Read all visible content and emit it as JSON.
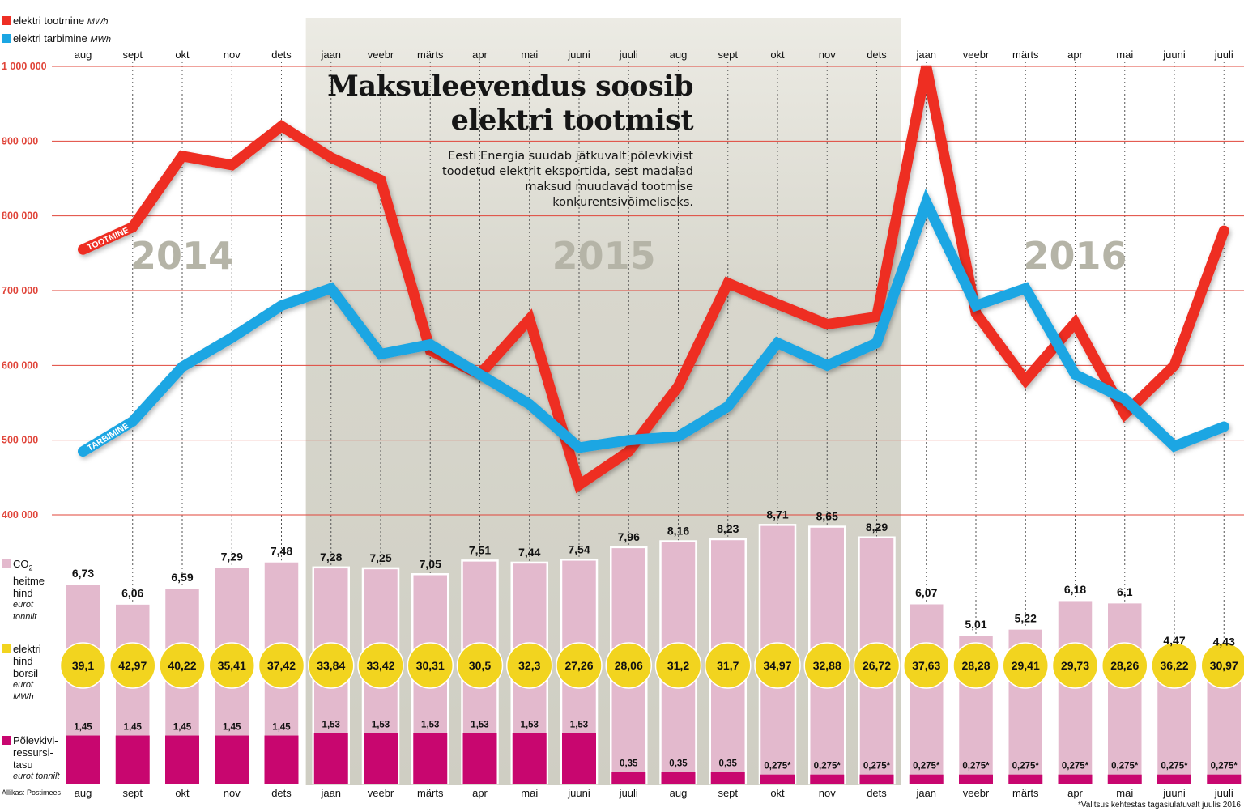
{
  "legend": {
    "production": {
      "label": "elektri tootmine",
      "unit": "MWh",
      "color": "#ee2e24"
    },
    "consumption": {
      "label": "elektri tarbimine",
      "unit": "MWh",
      "color": "#1ba6e3"
    }
  },
  "headline": "Maksuleevendus soosib elektri tootmist",
  "dek": "Eesti Energia suudab jätkuvalt põlevkivist toodetud elektrit eksportida, sest madalad maksud muudavad tootmise konkurentsivõimeliseks.",
  "side_labels": {
    "co2": {
      "line1": "CO",
      "sub": "2",
      "line2": "heitme",
      "line3": "hind",
      "unit1": "eurot",
      "unit2": "tonnilt",
      "color": "#e3b9cd"
    },
    "price": {
      "line1": "elektri",
      "line2": "hind",
      "line3": "börsil",
      "unit1": "eurot",
      "unit2": "MWh",
      "color": "#f2d41f"
    },
    "tax": {
      "line1": "Põlevkivi-",
      "line2": "ressursi-",
      "line3": "tasu",
      "unit1": "eurot tonnilt",
      "color": "#c8066f"
    }
  },
  "source": "Allikas: Postimees",
  "footnote": "*Valitsus kehtestas tagasiulatuvalt juulis 2016",
  "chart_data": {
    "type": "line",
    "categories": [
      "aug",
      "sept",
      "okt",
      "nov",
      "dets",
      "jaan",
      "veebr",
      "märts",
      "apr",
      "mai",
      "juuni",
      "juuli",
      "aug",
      "sept",
      "okt",
      "nov",
      "dets",
      "jaan",
      "veebr",
      "märts",
      "apr",
      "mai",
      "juuni",
      "juuli"
    ],
    "years": [
      {
        "label": "2014",
        "from": 0,
        "to": 4
      },
      {
        "label": "2015",
        "from": 5,
        "to": 16
      },
      {
        "label": "2016",
        "from": 17,
        "to": 23
      }
    ],
    "y_ticks": [
      {
        "value": 1000000,
        "label": "1 000 000"
      },
      {
        "value": 900000,
        "label": "900 000"
      },
      {
        "value": 800000,
        "label": "800 000"
      },
      {
        "value": 700000,
        "label": "700 000"
      },
      {
        "value": 600000,
        "label": "600 000"
      },
      {
        "value": 500000,
        "label": "500 000"
      },
      {
        "value": 400000,
        "label": "400 000"
      }
    ],
    "ylim": [
      400000,
      1000000
    ],
    "series": [
      {
        "name": "elektri tootmine",
        "line_label": "TOOTMINE",
        "color": "#ee2e24",
        "values": [
          755000,
          785000,
          880000,
          868000,
          920000,
          878000,
          848000,
          620000,
          588000,
          662000,
          440000,
          485000,
          572000,
          710000,
          682000,
          655000,
          665000,
          1000000,
          670000,
          580000,
          657000,
          535000,
          600000,
          780000
        ]
      },
      {
        "name": "elektri tarbimine",
        "line_label": "TARBIMINE",
        "color": "#1ba6e3",
        "values": [
          485000,
          525000,
          598000,
          637000,
          680000,
          703000,
          615000,
          628000,
          588000,
          548000,
          490000,
          500000,
          505000,
          545000,
          630000,
          600000,
          630000,
          818000,
          680000,
          703000,
          588000,
          555000,
          492000,
          518000
        ]
      }
    ],
    "co2_price": {
      "values": [
        6.73,
        6.06,
        6.59,
        7.29,
        7.48,
        7.28,
        7.25,
        7.05,
        7.51,
        7.44,
        7.54,
        7.96,
        8.16,
        8.23,
        8.71,
        8.65,
        8.29,
        6.07,
        5.01,
        5.22,
        6.18,
        6.1,
        4.47,
        4.43
      ],
      "labels": [
        "6,73",
        "6,06",
        "6,59",
        "7,29",
        "7,48",
        "7,28",
        "7,25",
        "7,05",
        "7,51",
        "7,44",
        "7,54",
        "7,96",
        "8,16",
        "8,23",
        "8,71",
        "8,65",
        "8,29",
        "6,07",
        "5,01",
        "5,22",
        "6,18",
        "6,1",
        "4,47",
        "4,43"
      ]
    },
    "exchange_price": {
      "values": [
        39.1,
        42.97,
        40.22,
        35.41,
        37.42,
        33.84,
        33.42,
        30.31,
        30.5,
        32.3,
        27.26,
        28.06,
        31.2,
        31.7,
        34.97,
        32.88,
        26.72,
        37.63,
        28.28,
        29.41,
        29.73,
        28.26,
        36.22,
        30.97
      ],
      "labels": [
        "39,1",
        "42,97",
        "40,22",
        "35,41",
        "37,42",
        "33,84",
        "33,42",
        "30,31",
        "30,5",
        "32,3",
        "27,26",
        "28,06",
        "31,2",
        "31,7",
        "34,97",
        "32,88",
        "26,72",
        "37,63",
        "28,28",
        "29,41",
        "29,73",
        "28,26",
        "36,22",
        "30,97"
      ]
    },
    "oil_shale_tax": {
      "values": [
        1.45,
        1.45,
        1.45,
        1.45,
        1.45,
        1.53,
        1.53,
        1.53,
        1.53,
        1.53,
        1.53,
        0.35,
        0.35,
        0.35,
        0.275,
        0.275,
        0.275,
        0.275,
        0.275,
        0.275,
        0.275,
        0.275,
        0.275,
        0.275
      ],
      "labels": [
        "1,45",
        "1,45",
        "1,45",
        "1,45",
        "1,45",
        "1,53",
        "1,53",
        "1,53",
        "1,53",
        "1,53",
        "1,53",
        "0,35",
        "0,35",
        "0,35",
        "0,275*",
        "0,275*",
        "0,275*",
        "0,275*",
        "0,275*",
        "0,275*",
        "0,275*",
        "0,275*",
        "0,275*",
        "0,275*"
      ]
    },
    "grid": true,
    "legend_position": "top-left"
  }
}
